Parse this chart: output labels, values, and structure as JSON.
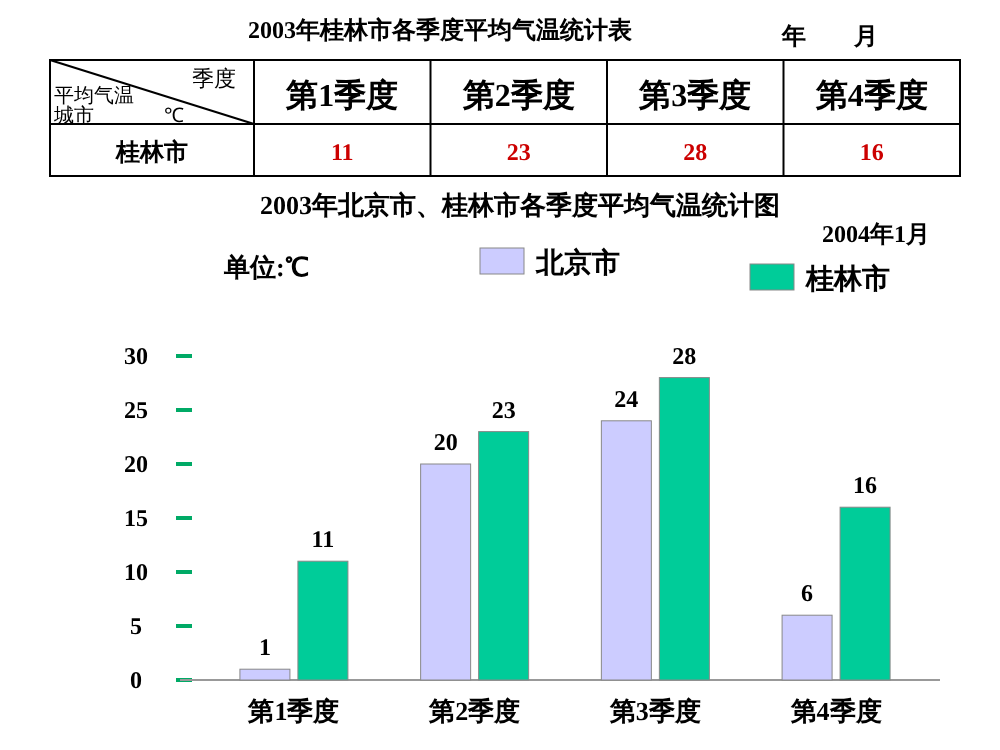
{
  "chart_data": {
    "type": "bar",
    "title": "2003年北京市、桂林市各季度平均气温统计图",
    "categories": [
      "第1季度",
      "第2季度",
      "第3季度",
      "第4季度"
    ],
    "series": [
      {
        "name": "北京市",
        "color": "#ccccff",
        "values": [
          1,
          20,
          24,
          6
        ]
      },
      {
        "name": "桂林市",
        "color": "#00cc99",
        "values": [
          11,
          23,
          28,
          16
        ]
      }
    ],
    "ylim": [
      0,
      30
    ],
    "yticks": [
      0,
      5,
      10,
      15,
      20,
      25,
      30
    ],
    "grid": false,
    "legend": "top",
    "data_labels": true,
    "annotations": [
      "2003年桂林市各季度平均气温统计表",
      "年        月",
      "2004年1月",
      "单位:℃",
      "平均气温",
      "季度",
      "城市",
      "℃",
      "11",
      "23",
      "28",
      "16"
    ]
  }
}
